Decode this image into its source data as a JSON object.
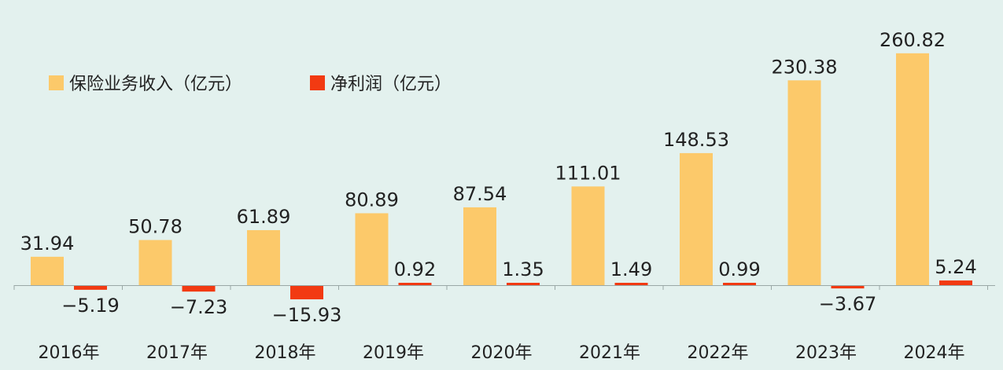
{
  "chart_data": {
    "type": "bar",
    "categories": [
      "2016年",
      "2017年",
      "2018年",
      "2019年",
      "2020年",
      "2021年",
      "2022年",
      "2023年",
      "2024年"
    ],
    "series": [
      {
        "name": "保险业务收入（亿元）",
        "values": [
          31.94,
          50.78,
          61.89,
          80.89,
          87.54,
          111.01,
          148.53,
          230.38,
          260.82
        ],
        "labels": [
          "31.94",
          "50.78",
          "61.89",
          "80.89",
          "87.54",
          "111.01",
          "148.53",
          "230.38",
          "260.82"
        ],
        "color": "#fcc96a"
      },
      {
        "name": "净利润（亿元）",
        "values": [
          -5.19,
          -7.23,
          -15.93,
          0.92,
          1.35,
          1.49,
          0.99,
          -3.67,
          5.24
        ],
        "labels": [
          "−5.19",
          "−7.23",
          "−15.93",
          "0.92",
          "1.35",
          "1.49",
          "0.99",
          "−3.67",
          "5.24"
        ],
        "color": "#f23a12"
      }
    ],
    "legend": "top-left",
    "grid": false
  }
}
